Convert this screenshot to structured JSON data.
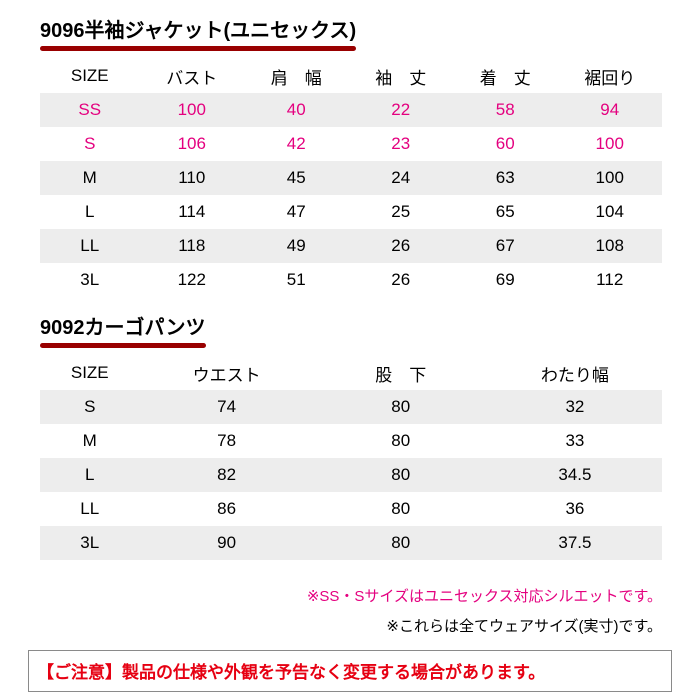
{
  "colors": {
    "accent_bar": "#990000",
    "highlight_text": "#e4007f",
    "row_alt_bg": "#ededed",
    "notice_text": "#e60012",
    "text": "#000000"
  },
  "section1": {
    "title": "9096半袖ジャケット(ユニセックス)",
    "table": {
      "headers": [
        "SIZE",
        "バスト",
        "肩　幅",
        "袖　丈",
        "着　丈",
        "裾回り"
      ],
      "rows": [
        {
          "cells": [
            "SS",
            "100",
            "40",
            "22",
            "58",
            "94"
          ]
        },
        {
          "cells": [
            "S",
            "106",
            "42",
            "23",
            "60",
            "100"
          ]
        },
        {
          "cells": [
            "M",
            "110",
            "45",
            "24",
            "63",
            "100"
          ]
        },
        {
          "cells": [
            "L",
            "114",
            "47",
            "25",
            "65",
            "104"
          ]
        },
        {
          "cells": [
            "LL",
            "118",
            "49",
            "26",
            "67",
            "108"
          ]
        },
        {
          "cells": [
            "3L",
            "122",
            "51",
            "26",
            "69",
            "112"
          ]
        }
      ]
    }
  },
  "section2": {
    "title": "9092カーゴパンツ",
    "table": {
      "headers": [
        "SIZE",
        "ウエスト",
        "股　下",
        "わたり幅"
      ],
      "rows": [
        {
          "cells": [
            "S",
            "74",
            "80",
            "32"
          ]
        },
        {
          "cells": [
            "M",
            "78",
            "80",
            "33"
          ]
        },
        {
          "cells": [
            "L",
            "82",
            "80",
            "34.5"
          ]
        },
        {
          "cells": [
            "LL",
            "86",
            "80",
            "36"
          ]
        },
        {
          "cells": [
            "3L",
            "90",
            "80",
            "37.5"
          ]
        }
      ]
    }
  },
  "notes": [
    {
      "text": "※SS・Sサイズはユニセックス対応シルエットです。"
    },
    {
      "text": "※これらは全てウェアサイズ(実寸)です。"
    }
  ],
  "notice": {
    "text": "【ご注意】製品の仕様や外観を予告なく変更する場合があります。"
  }
}
